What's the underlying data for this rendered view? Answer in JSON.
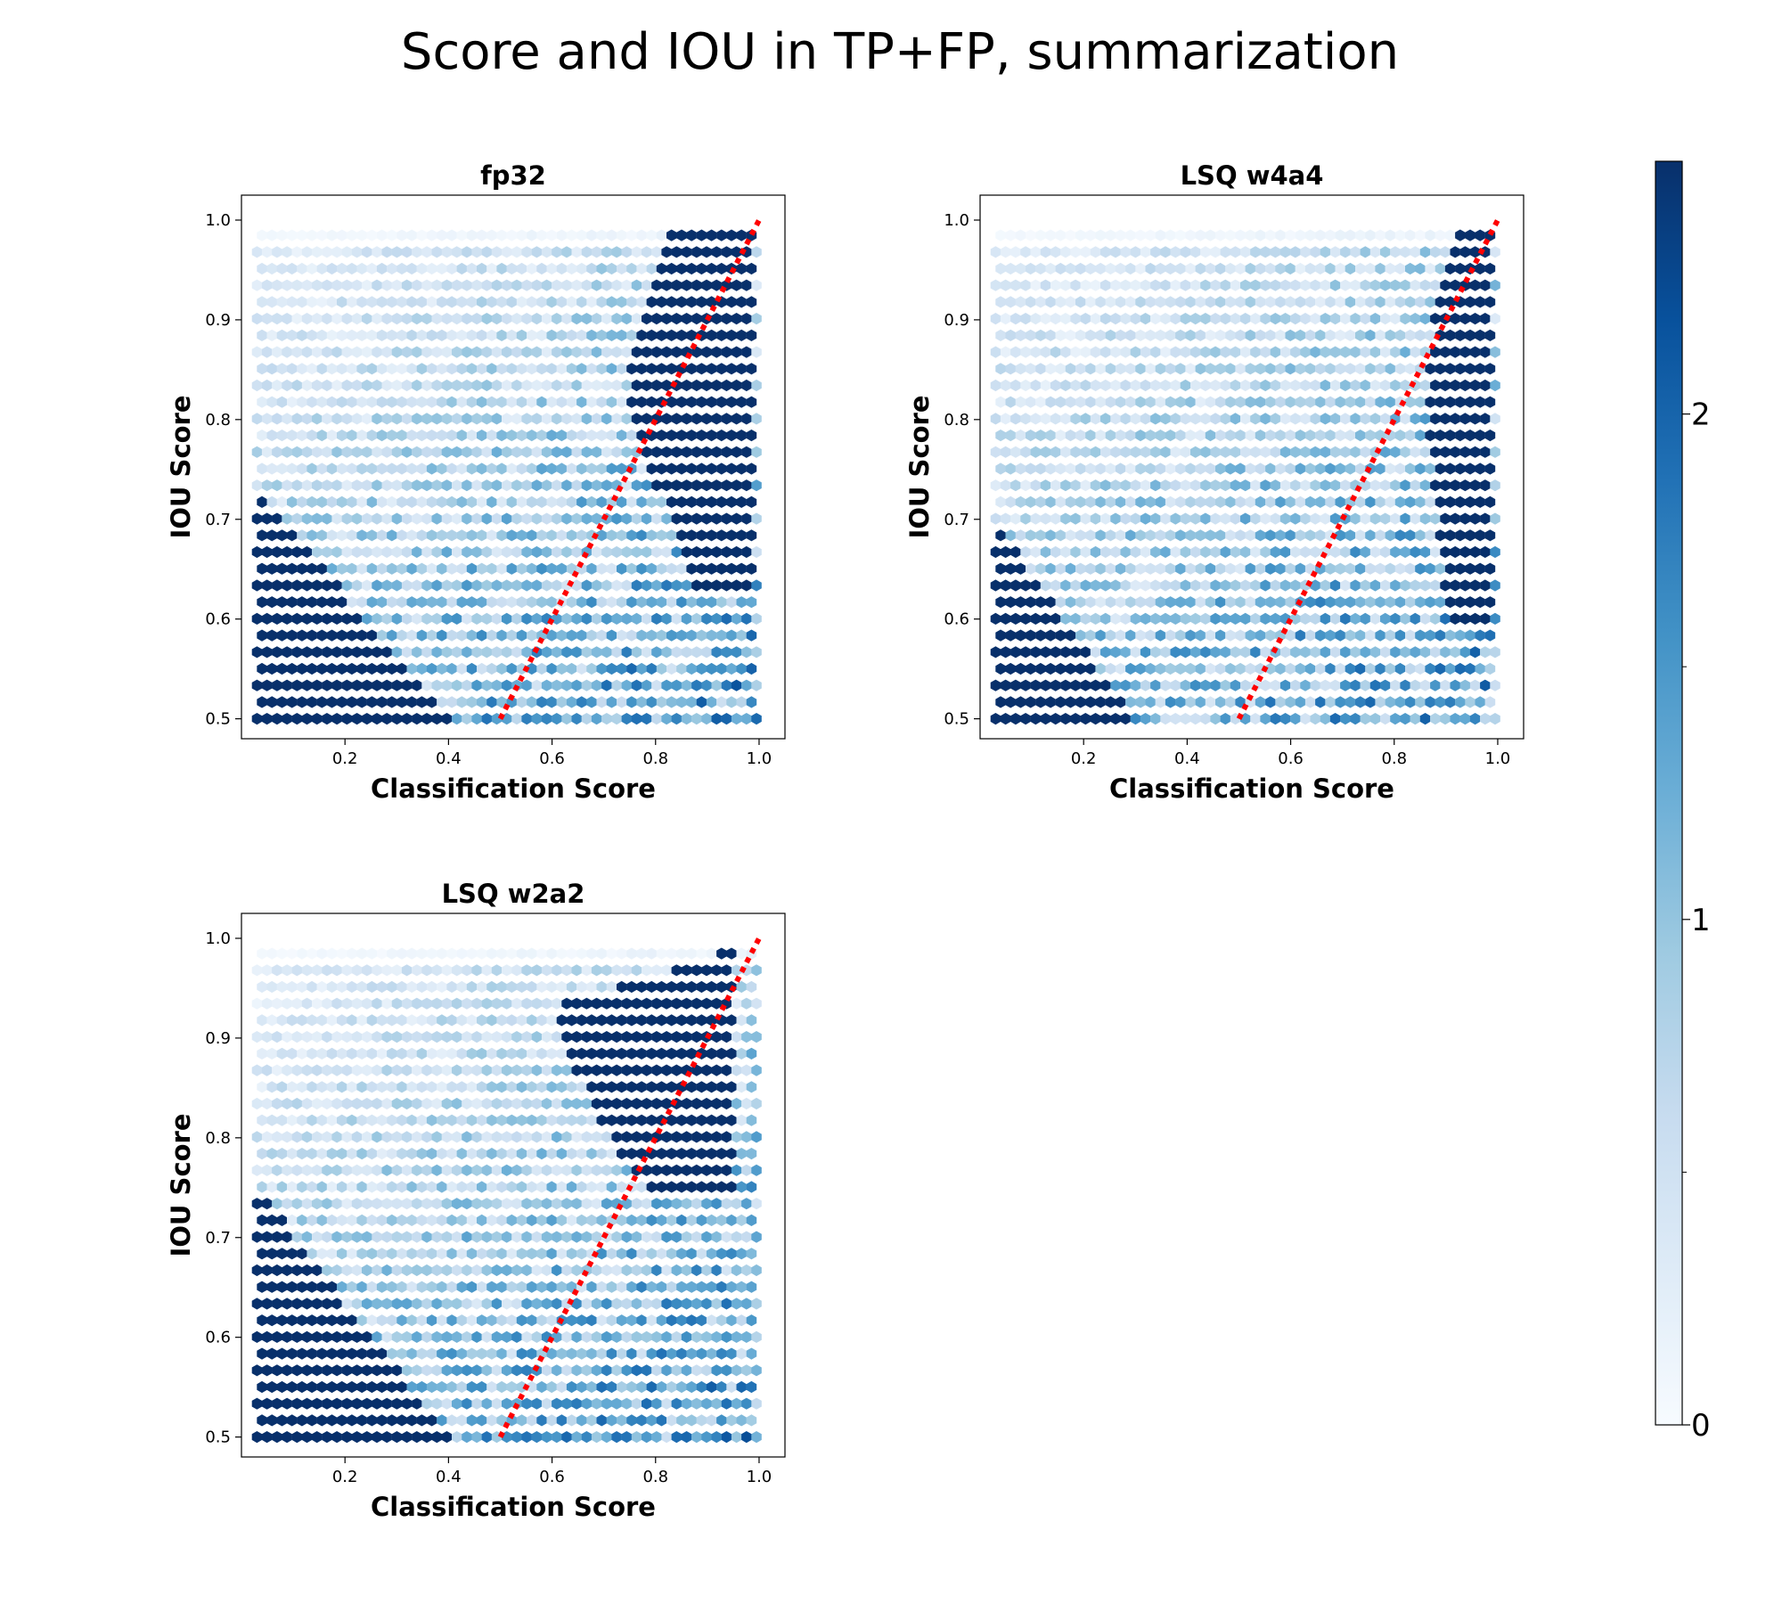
{
  "title": "Score and IOU in TP+FP, summarization",
  "colors": {
    "cmap": [
      "#f7fbff",
      "#deebf7",
      "#c6dbef",
      "#9ecae1",
      "#6baed6",
      "#4292c6",
      "#2171b5",
      "#08519c",
      "#08306b"
    ],
    "reference_line": "#ff0000"
  },
  "colorbar": {
    "range": [
      0,
      2.5
    ],
    "major_ticks": [
      0,
      1,
      2
    ],
    "major_tick_labels": [
      "0",
      "1",
      "2"
    ],
    "minor_ticks": [
      0.5,
      1.5
    ]
  },
  "chart_data": [
    {
      "type": "hexbin",
      "title": "fp32",
      "xlabel": "Classification Score",
      "ylabel": "IOU Score",
      "xlim": [
        0.0,
        1.05
      ],
      "ylim": [
        0.48,
        1.025
      ],
      "xticks": [
        0.2,
        0.4,
        0.6,
        0.8,
        1.0
      ],
      "xtick_labels": [
        "0.2",
        "0.4",
        "0.6",
        "0.8",
        "1.0"
      ],
      "yticks": [
        0.5,
        0.6,
        0.7,
        0.8,
        0.9,
        1.0
      ],
      "ytick_labels": [
        "0.5",
        "0.6",
        "0.7",
        "0.8",
        "0.9",
        "1.0"
      ],
      "reference_line": {
        "x": [
          0.5,
          1.0
        ],
        "y": [
          0.5,
          1.0
        ],
        "style": "dotted"
      },
      "density_regions": [
        {
          "shape": "triangle",
          "points": [
            [
              0.03,
              0.5
            ],
            [
              0.03,
              0.73
            ],
            [
              0.4,
              0.5
            ]
          ],
          "level": 2.5
        },
        {
          "shape": "polygon",
          "points": [
            [
              0.83,
              0.99
            ],
            [
              0.99,
              0.99
            ],
            [
              0.99,
              0.62
            ],
            [
              0.88,
              0.62
            ],
            [
              0.74,
              0.82
            ],
            [
              0.77,
              0.9
            ]
          ],
          "level": 2.5
        }
      ]
    },
    {
      "type": "hexbin",
      "title": "LSQ w4a4",
      "xlabel": "Classification Score",
      "ylabel": "IOU Score",
      "xlim": [
        0.0,
        1.05
      ],
      "ylim": [
        0.48,
        1.025
      ],
      "xticks": [
        0.2,
        0.4,
        0.6,
        0.8,
        1.0
      ],
      "xtick_labels": [
        "0.2",
        "0.4",
        "0.6",
        "0.8",
        "1.0"
      ],
      "yticks": [
        0.5,
        0.6,
        0.7,
        0.8,
        0.9,
        1.0
      ],
      "ytick_labels": [
        "0.5",
        "0.6",
        "0.7",
        "0.8",
        "0.9",
        "1.0"
      ],
      "reference_line": {
        "x": [
          0.5,
          1.0
        ],
        "y": [
          0.5,
          1.0
        ],
        "style": "dotted"
      },
      "density_regions": [
        {
          "shape": "triangle",
          "points": [
            [
              0.03,
              0.5
            ],
            [
              0.03,
              0.7
            ],
            [
              0.3,
              0.5
            ]
          ],
          "level": 2.5
        },
        {
          "shape": "polygon",
          "points": [
            [
              0.93,
              0.99
            ],
            [
              0.99,
              0.99
            ],
            [
              0.99,
              0.6
            ],
            [
              0.9,
              0.6
            ],
            [
              0.86,
              0.8
            ],
            [
              0.88,
              0.92
            ]
          ],
          "level": 2.5
        }
      ]
    },
    {
      "type": "hexbin",
      "title": "LSQ w2a2",
      "xlabel": "Classification Score",
      "ylabel": "IOU Score",
      "xlim": [
        0.0,
        1.05
      ],
      "ylim": [
        0.48,
        1.025
      ],
      "xticks": [
        0.2,
        0.4,
        0.6,
        0.8,
        1.0
      ],
      "xtick_labels": [
        "0.2",
        "0.4",
        "0.6",
        "0.8",
        "1.0"
      ],
      "yticks": [
        0.5,
        0.6,
        0.7,
        0.8,
        0.9,
        1.0
      ],
      "ytick_labels": [
        "0.5",
        "0.6",
        "0.7",
        "0.8",
        "0.9",
        "1.0"
      ],
      "reference_line": {
        "x": [
          0.5,
          1.0
        ],
        "y": [
          0.5,
          1.0
        ],
        "style": "dotted"
      },
      "density_regions": [
        {
          "shape": "triangle",
          "points": [
            [
              0.03,
              0.5
            ],
            [
              0.03,
              0.75
            ],
            [
              0.4,
              0.5
            ]
          ],
          "level": 2.5
        },
        {
          "shape": "polygon",
          "points": [
            [
              0.6,
              0.93
            ],
            [
              0.95,
              0.99
            ],
            [
              0.95,
              0.74
            ],
            [
              0.8,
              0.74
            ],
            [
              0.68,
              0.82
            ]
          ],
          "level": 2.5
        }
      ]
    }
  ]
}
